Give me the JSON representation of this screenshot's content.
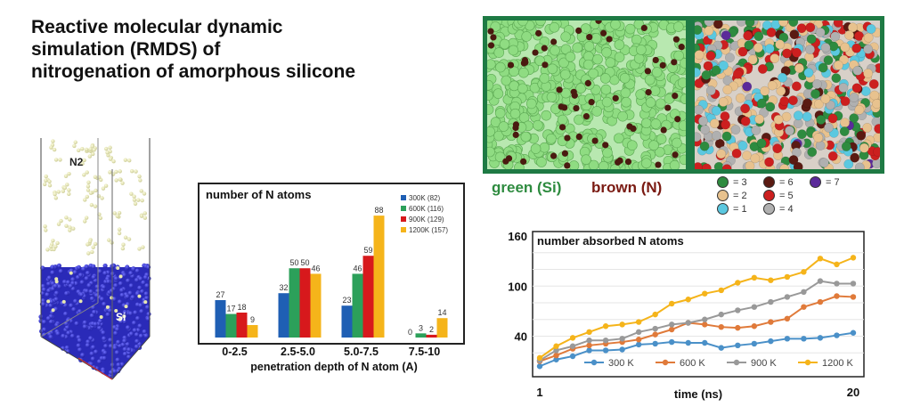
{
  "title": "Reactive molecular dynamic\nsimulation (RMDS) of\nnitrogenation of amorphous silicone",
  "simbox": {
    "gas_label": "N2",
    "solid_label": "Si"
  },
  "snapshot_labels": {
    "green": "green (Si)",
    "brown": "brown (N)"
  },
  "coordination_legend": [
    {
      "label": "= 3",
      "color": "#2e8b3f"
    },
    {
      "label": "= 6",
      "color": "#5a1a12"
    },
    {
      "label": "= 7",
      "color": "#5b2a9a"
    },
    {
      "label": "= 2",
      "color": "#e8c28e"
    },
    {
      "label": "= 5",
      "color": "#cc1f1f"
    },
    {
      "label": "= 1",
      "color": "#5bc8e0"
    },
    {
      "label": "= 4",
      "color": "#b0b0b0"
    }
  ],
  "chart_data": [
    {
      "type": "bar",
      "title": "number of N atoms",
      "xlabel": "penetration depth of N atom (A)",
      "categories": [
        "0-2.5",
        "2.5-5.0",
        "5.0-7.5",
        "7.5-10"
      ],
      "ylim": [
        0,
        90
      ],
      "series": [
        {
          "name": "300K (82)",
          "color": "#1f5fb4",
          "values": [
            27,
            32,
            23,
            0
          ]
        },
        {
          "name": "600K (116)",
          "color": "#2ca05a",
          "values": [
            17,
            50,
            46,
            3
          ]
        },
        {
          "name": "900K (129)",
          "color": "#d7191c",
          "values": [
            18,
            50,
            59,
            2
          ]
        },
        {
          "name": "1200K (157)",
          "color": "#f5b41a",
          "values": [
            9,
            46,
            88,
            14
          ]
        }
      ]
    },
    {
      "type": "line",
      "title": "number absorbed N atoms",
      "xlabel": "time (ns)",
      "x_tick_labels": [
        {
          "x": 1,
          "label": "1"
        },
        {
          "x": 20,
          "label": "20"
        }
      ],
      "y_tick_labels": [
        {
          "y": 40,
          "label": "40"
        },
        {
          "y": 100,
          "label": "100"
        },
        {
          "y": 160,
          "label": "160"
        }
      ],
      "xlim": [
        1,
        20
      ],
      "ylim": [
        0,
        160
      ],
      "x": [
        1,
        2,
        3,
        4,
        5,
        6,
        7,
        8,
        9,
        10,
        11,
        12,
        13,
        14,
        15,
        16,
        17,
        18,
        19,
        20
      ],
      "series": [
        {
          "name": "300 K",
          "color": "#4a90c8",
          "values": [
            4,
            12,
            16,
            23,
            23,
            24,
            30,
            31,
            33,
            32,
            32,
            26,
            29,
            31,
            34,
            37,
            37,
            38,
            41,
            44
          ]
        },
        {
          "name": "600 K",
          "color": "#e07a3a",
          "values": [
            10,
            17,
            25,
            29,
            31,
            33,
            36,
            42,
            48,
            56,
            54,
            51,
            50,
            52,
            57,
            61,
            75,
            81,
            88,
            87
          ]
        },
        {
          "name": "900 K",
          "color": "#999999",
          "values": [
            11,
            23,
            28,
            35,
            35,
            37,
            45,
            49,
            54,
            56,
            60,
            66,
            71,
            75,
            81,
            87,
            93,
            106,
            103,
            103
          ]
        },
        {
          "name": "1200 K",
          "color": "#f5b41a",
          "values": [
            14,
            28,
            38,
            45,
            52,
            54,
            57,
            66,
            79,
            84,
            91,
            95,
            104,
            110,
            107,
            111,
            117,
            133,
            126,
            134
          ]
        }
      ]
    }
  ]
}
